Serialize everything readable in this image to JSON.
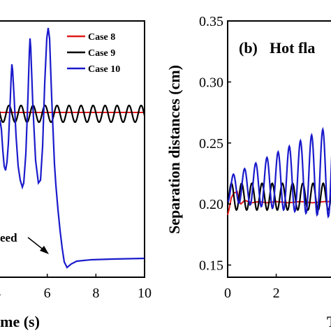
{
  "chart_data": [
    {
      "type": "line",
      "panel": "a",
      "xlabel": "ime (s)",
      "xlim": [
        4.0,
        10.0
      ],
      "x_ticks": [
        6,
        8,
        10
      ],
      "x_tick_labels": [
        "6",
        "8",
        "10"
      ],
      "partial_tick_label": "4",
      "series": [
        {
          "name": "Case 8",
          "color": "#e01a1a"
        },
        {
          "name": "Case 9",
          "color": "#000000"
        },
        {
          "name": "Case 10",
          "color": "#1a1acc"
        }
      ],
      "annotation": "eed"
    },
    {
      "type": "line",
      "panel": "b",
      "title": "(b)",
      "subtitle": "Hot fla",
      "ylabel": "Separation distances (cm)",
      "xlabel": "T",
      "xlim": [
        0,
        4.6
      ],
      "ylim": [
        0.14,
        0.35
      ],
      "x_ticks": [
        0,
        2
      ],
      "x_tick_labels": [
        "0",
        "2"
      ],
      "y_ticks": [
        0.15,
        0.2,
        0.25,
        0.3,
        0.35
      ],
      "y_tick_labels": [
        "0.15",
        "0.20",
        "0.25",
        "0.30",
        "0.35"
      ],
      "series": [
        {
          "name": "Case 8",
          "color": "#e01a1a"
        },
        {
          "name": "Case 9",
          "color": "#000000"
        },
        {
          "name": "Case 10",
          "color": "#1a1acc"
        }
      ]
    }
  ]
}
